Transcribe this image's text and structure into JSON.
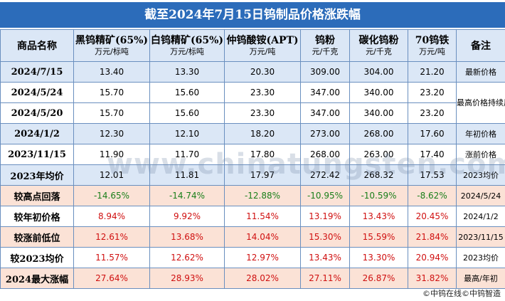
{
  "title": "截至2024年7月15日钨制品价格涨跌幅",
  "headers": [
    {
      "name": "商品名称",
      "unit": ""
    },
    {
      "name": "黑钨精矿(65%)",
      "unit": "万元/标吨"
    },
    {
      "name": "白钨精矿(65%)",
      "unit": "万元/标吨"
    },
    {
      "name": "仲钨酸铵(APT)",
      "unit": "万元/吨"
    },
    {
      "name": "钨粉",
      "unit": "元/千克"
    },
    {
      "name": "碳化钨粉",
      "unit": "元/千克"
    },
    {
      "name": "70钨铁",
      "unit": "万元/吨"
    },
    {
      "name": "备注",
      "unit": ""
    }
  ],
  "rows": [
    {
      "label": "2024/7/15",
      "values": [
        "13.40",
        "13.30",
        "20.30",
        "309.00",
        "304.00",
        "21.20"
      ]
    },
    {
      "label": "2024/5/24",
      "values": [
        "15.70",
        "15.60",
        "23.30",
        "347.00",
        "340.00",
        "23.20"
      ]
    },
    {
      "label": "2024/5/20",
      "values": [
        "15.70",
        "15.60",
        "23.30",
        "347.00",
        "340.00",
        "23.20"
      ]
    },
    {
      "label": "2024/1/2",
      "values": [
        "12.30",
        "12.10",
        "18.20",
        "273.00",
        "268.00",
        "17.60"
      ]
    },
    {
      "label": "2023/11/15",
      "values": [
        "11.90",
        "11.70",
        "17.80",
        "268.00",
        "263.00",
        "17.40"
      ]
    },
    {
      "label": "2023年均价",
      "values": [
        "12.01",
        "11.81",
        "17.97",
        "272.42",
        "268.32",
        "17.53"
      ]
    },
    {
      "label": "较高点回落",
      "values": [
        "-14.65%",
        "-14.74%",
        "-12.88%",
        "-10.95%",
        "-10.59%",
        "-8.62%"
      ]
    },
    {
      "label": "较年初价格",
      "values": [
        "8.94%",
        "9.92%",
        "11.54%",
        "13.19%",
        "13.43%",
        "20.45%"
      ]
    },
    {
      "label": "较涨前低位",
      "values": [
        "12.61%",
        "13.68%",
        "14.04%",
        "15.30%",
        "15.59%",
        "21.84%"
      ]
    },
    {
      "label": "较2023均价",
      "values": [
        "11.57%",
        "12.62%",
        "12.97%",
        "13.43%",
        "13.30%",
        "20.94%"
      ]
    },
    {
      "label": "2024最大涨幅",
      "values": [
        "27.64%",
        "28.93%",
        "28.02%",
        "27.11%",
        "26.87%",
        "31.82%"
      ]
    }
  ],
  "notes": {
    "r0": "最新价格",
    "r1": "最高价格持续周期",
    "r3": "年初价格",
    "r4": "涨前价格",
    "r5": "2023均价",
    "r6": "2024/5/24",
    "r7": "2024/1/2",
    "r8": "2023/11/15",
    "r9": "2023均价",
    "r10": "最高/年初"
  },
  "footer": "©中钨在线©中钨智造",
  "watermark": "www.chinatungsten.com",
  "colors": {
    "title_bg": "#2c6cba",
    "header_bg": "#dbe7f6",
    "row_blue": "#dbe7f6",
    "row_pink": "#fbe2d6",
    "negative": "#1a7f1a",
    "positive": "#d01010"
  }
}
